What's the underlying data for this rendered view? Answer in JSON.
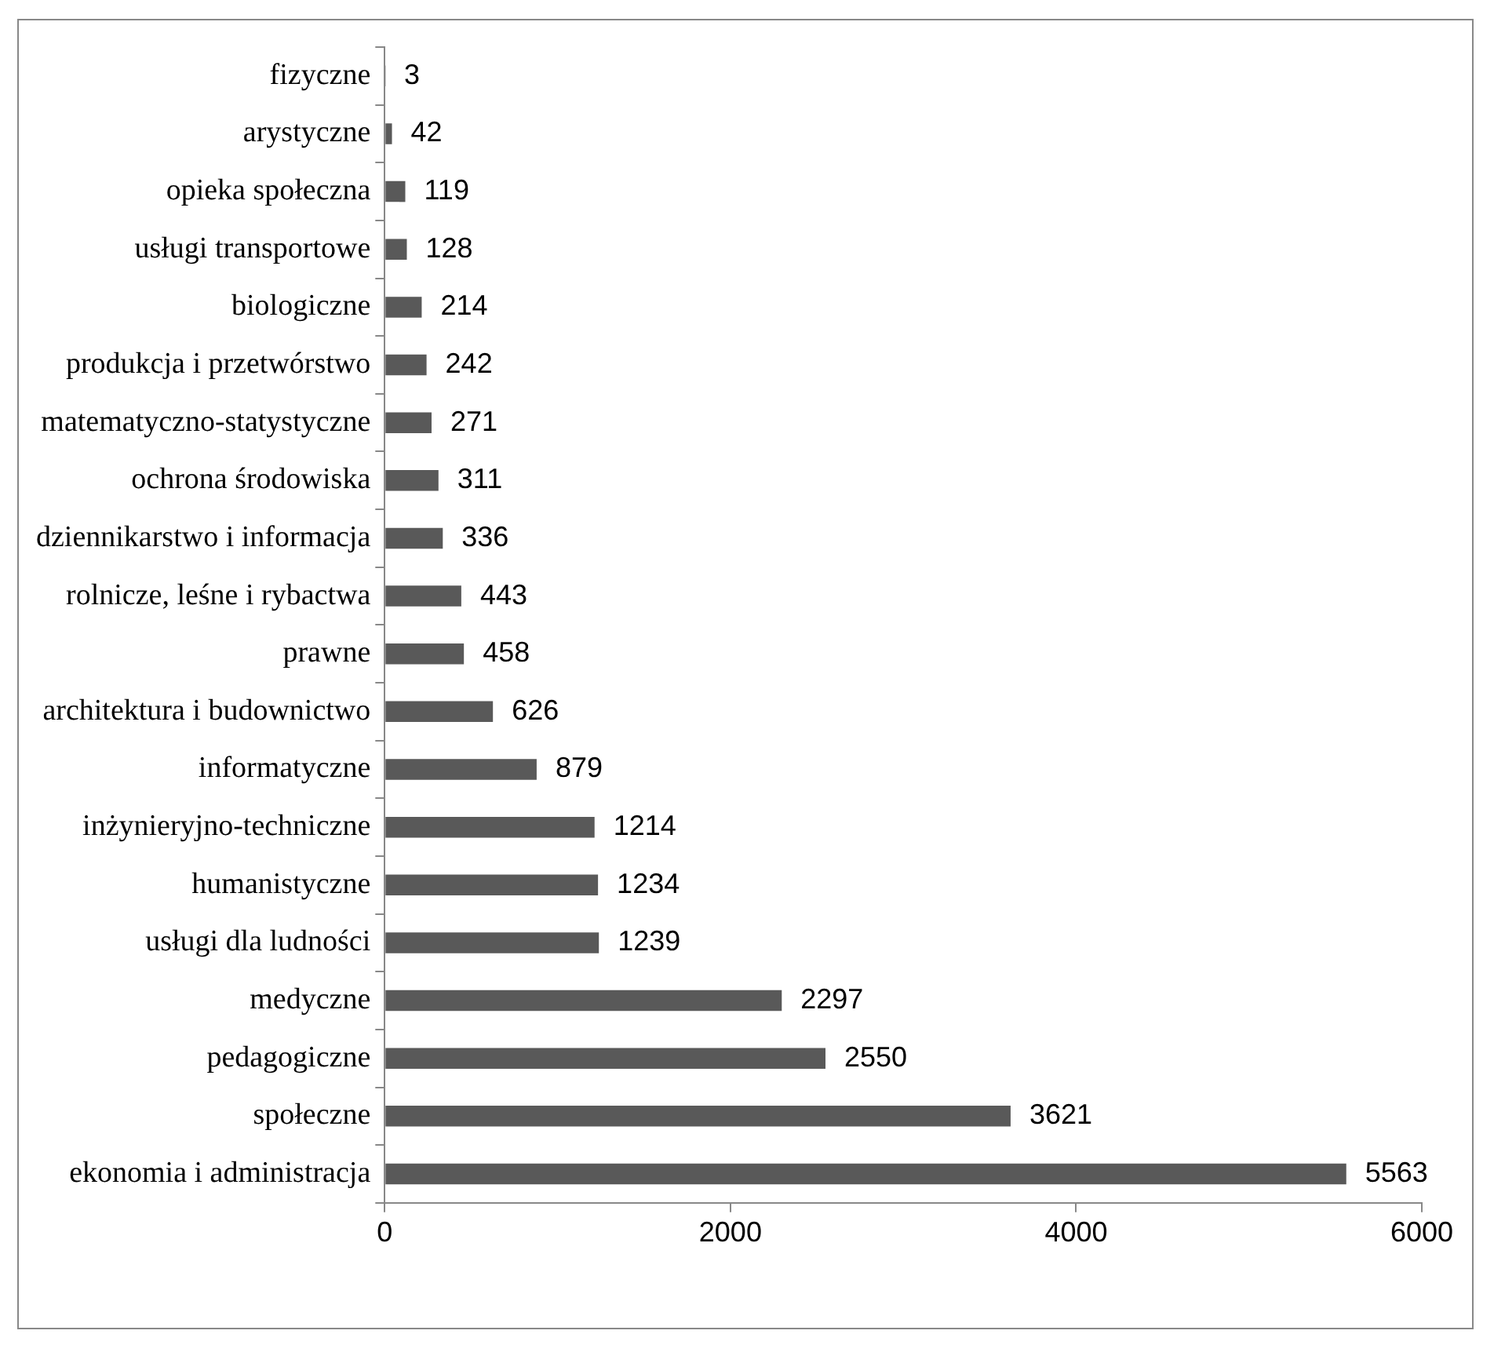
{
  "chart_data": {
    "type": "bar",
    "orientation": "horizontal",
    "categories": [
      "fizyczne",
      "arystyczne",
      "opieka społeczna",
      "usługi transportowe",
      "biologiczne",
      "produkcja i przetwórstwo",
      "matematyczno-statystyczne",
      "ochrona środowiska",
      "dziennikarstwo i informacja",
      "rolnicze, leśne i rybactwa",
      "prawne",
      "architektura i budownictwo",
      "informatyczne",
      "inżynieryjno-techniczne",
      "humanistyczne",
      "usługi dla ludności",
      "medyczne",
      "pedagogiczne",
      "społeczne",
      "ekonomia i administracja"
    ],
    "values": [
      3,
      42,
      119,
      128,
      214,
      242,
      271,
      311,
      336,
      443,
      458,
      626,
      879,
      1214,
      1234,
      1239,
      2297,
      2550,
      3621,
      5563
    ],
    "color": "#595959",
    "xlim": [
      0,
      6000
    ],
    "xticks": [
      0,
      2000,
      4000,
      6000
    ],
    "grid": false,
    "legend": false,
    "data_labels": true
  }
}
